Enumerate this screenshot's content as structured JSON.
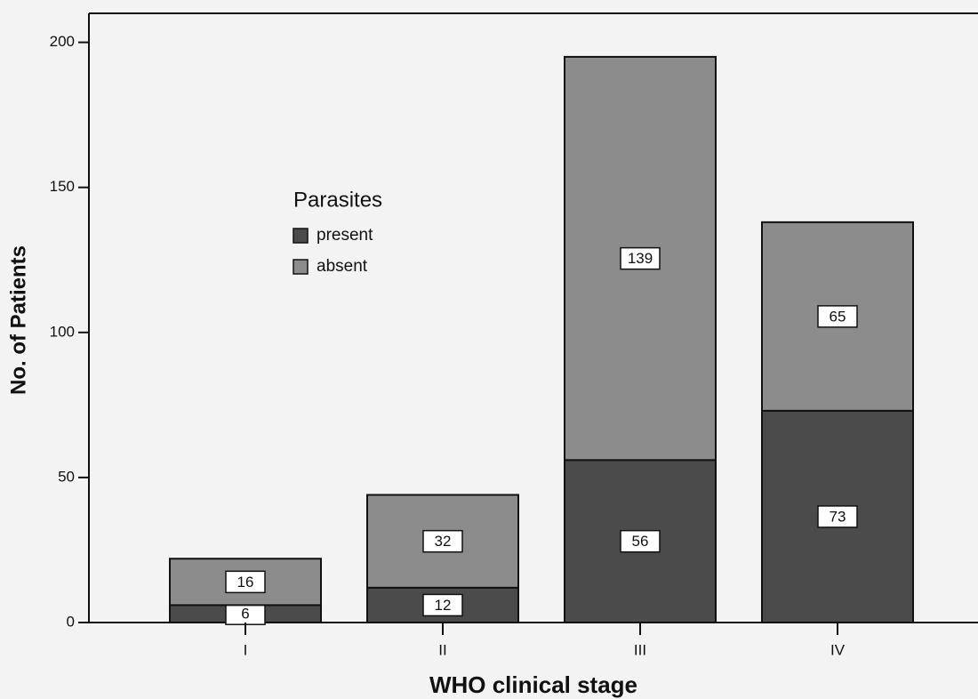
{
  "chart_data": {
    "type": "stacked_bar",
    "y_label": "No. of Patients",
    "x_label": "WHO clinical stage",
    "legend_title": "Parasites",
    "categories": [
      "I",
      "II",
      "III",
      "IV"
    ],
    "series": [
      {
        "name": "present",
        "color": "#4b4b4b",
        "values": [
          6,
          12,
          56,
          73
        ]
      },
      {
        "name": "absent",
        "color": "#8c8c8c",
        "values": [
          16,
          32,
          139,
          65
        ]
      }
    ],
    "ylim": [
      0,
      210
    ],
    "yticks": [
      0,
      50,
      100,
      150,
      200
    ]
  }
}
